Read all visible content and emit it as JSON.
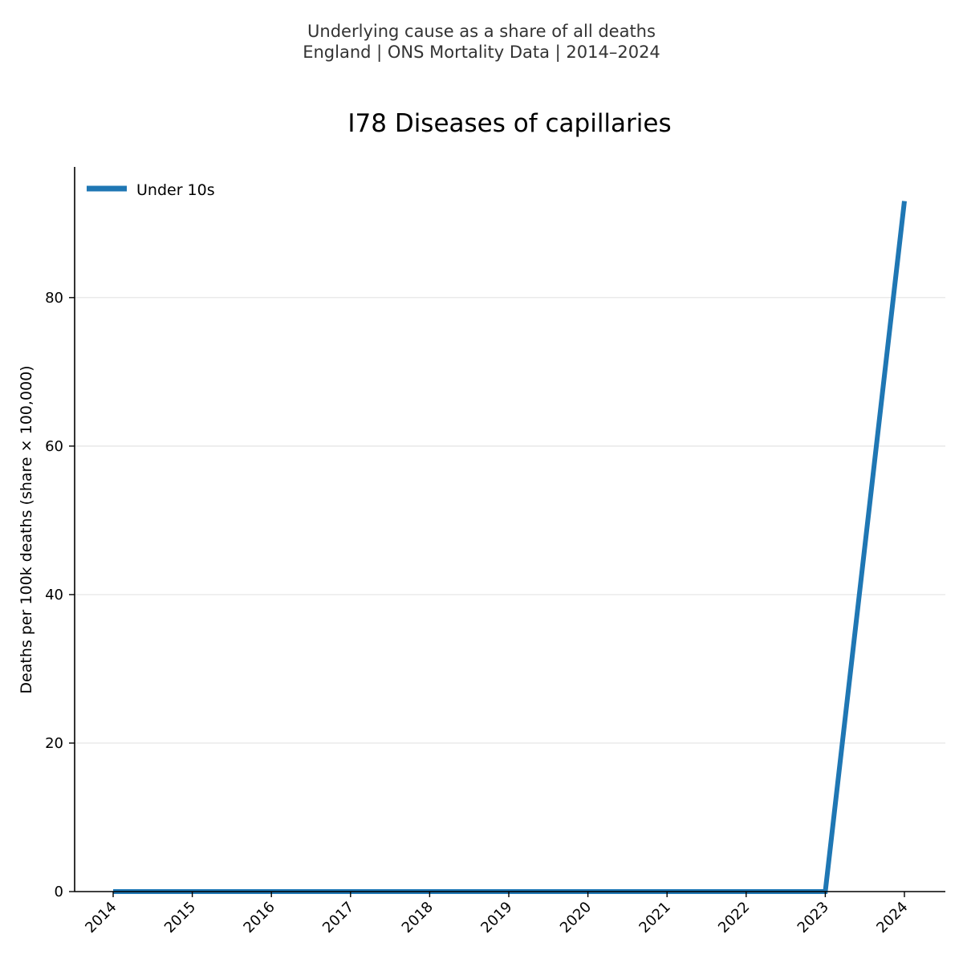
{
  "header": {
    "line1": "Underlying cause as a share of all deaths",
    "line2": "England | ONS Mortality Data | 2014–2024"
  },
  "chart_data": {
    "type": "line",
    "title": "I78 Diseases of capillaries",
    "xlabel": "",
    "ylabel": "Deaths per 100k deaths (share × 100,000)",
    "categories": [
      "2014",
      "2015",
      "2016",
      "2017",
      "2018",
      "2019",
      "2020",
      "2021",
      "2022",
      "2023",
      "2024"
    ],
    "series": [
      {
        "name": "Under 10s",
        "color": "#1f77b4",
        "values": [
          0,
          0,
          0,
          0,
          0,
          0,
          0,
          0,
          0,
          0,
          93
        ]
      }
    ],
    "yticks": [
      0,
      20,
      40,
      60,
      80
    ],
    "ylim": [
      0,
      97.6
    ],
    "grid": "horizontal",
    "legend_position": "top-left"
  }
}
